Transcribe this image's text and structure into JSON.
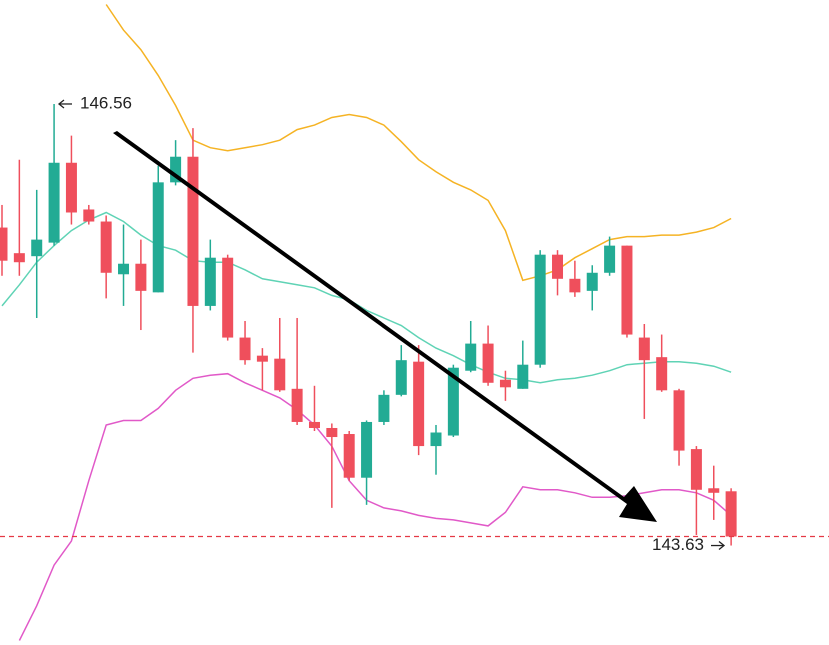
{
  "chart_data": {
    "type": "candlestick",
    "up_color": "#22ab94",
    "down_color": "#ef4f5c",
    "ylim": [
      142.97,
      147.25
    ],
    "open": [
      145.74,
      145.57,
      145.55,
      145.64,
      146.17,
      145.86,
      145.78,
      145.43,
      145.5,
      145.31,
      146.04,
      146.21,
      145.22,
      145.54,
      145.01,
      144.89,
      144.87,
      144.67,
      144.45,
      144.41,
      144.37,
      144.08,
      144.45,
      144.63,
      144.85,
      144.29,
      144.36,
      144.79,
      144.97,
      144.73,
      144.67,
      144.83,
      145.56,
      145.4,
      145.32,
      145.44,
      145.62,
      145.01,
      144.88,
      144.66,
      144.27,
      144.01,
      143.99
    ],
    "high": [
      145.89,
      146.19,
      145.99,
      146.56,
      146.35,
      145.89,
      145.82,
      145.76,
      145.66,
      146.15,
      146.32,
      146.4,
      145.66,
      145.56,
      145.12,
      144.94,
      145.14,
      145.14,
      144.69,
      144.44,
      144.39,
      144.46,
      144.66,
      144.96,
      144.96,
      144.43,
      144.83,
      145.12,
      145.09,
      144.79,
      144.99,
      145.59,
      145.59,
      145.52,
      145.49,
      145.68,
      145.62,
      145.1,
      145.03,
      144.67,
      144.29,
      144.16,
      144.01
    ],
    "low": [
      145.42,
      145.42,
      145.14,
      145.62,
      145.76,
      145.76,
      145.27,
      145.22,
      145.06,
      145.31,
      146.02,
      144.91,
      145.19,
      144.99,
      144.83,
      144.66,
      144.65,
      144.43,
      144.39,
      143.88,
      144.06,
      143.9,
      144.43,
      144.62,
      144.23,
      144.1,
      144.35,
      144.78,
      144.69,
      144.59,
      144.67,
      144.81,
      145.29,
      145.28,
      145.19,
      145.42,
      145.01,
      144.47,
      144.65,
      144.16,
      143.7,
      143.8,
      143.63
    ],
    "close": [
      145.52,
      145.51,
      145.66,
      146.17,
      145.84,
      145.78,
      145.44,
      145.5,
      145.32,
      146.04,
      146.21,
      145.22,
      145.54,
      145.01,
      144.86,
      144.85,
      144.66,
      144.45,
      144.41,
      144.35,
      144.08,
      144.45,
      144.63,
      144.86,
      144.29,
      144.38,
      144.81,
      144.97,
      144.71,
      144.68,
      144.83,
      145.56,
      145.4,
      145.31,
      145.44,
      145.62,
      145.03,
      144.86,
      144.66,
      144.26,
      144.0,
      143.98,
      143.69
    ],
    "lines": [
      {
        "color": "#f5b324",
        "values": [
          null,
          null,
          null,
          null,
          null,
          null,
          147.22,
          147.05,
          146.92,
          146.75,
          146.55,
          146.32,
          146.27,
          146.25,
          146.27,
          146.29,
          146.32,
          146.39,
          146.42,
          146.47,
          146.49,
          146.47,
          146.42,
          146.31,
          146.19,
          146.11,
          146.04,
          145.99,
          145.92,
          145.72,
          145.39,
          145.42,
          145.46,
          145.54,
          145.6,
          145.66,
          145.68,
          145.68,
          145.69,
          145.69,
          145.71,
          145.74,
          145.8
        ]
      },
      {
        "color": "#5fd3b5",
        "values": [
          145.22,
          145.36,
          145.51,
          145.62,
          145.72,
          145.79,
          145.84,
          145.78,
          145.69,
          145.62,
          145.59,
          145.52,
          145.51,
          145.51,
          145.46,
          145.4,
          145.38,
          145.36,
          145.34,
          145.29,
          145.26,
          145.19,
          145.14,
          145.09,
          145.01,
          144.94,
          144.89,
          144.83,
          144.78,
          144.74,
          144.73,
          144.71,
          144.73,
          144.74,
          144.76,
          144.79,
          144.83,
          144.84,
          144.85,
          144.85,
          144.84,
          144.82,
          144.78
        ]
      },
      {
        "color": "#e159c8",
        "values": [
          null,
          143.0,
          143.23,
          143.5,
          143.66,
          144.06,
          144.43,
          144.46,
          144.46,
          144.54,
          144.66,
          144.74,
          144.76,
          144.77,
          144.71,
          144.66,
          144.61,
          144.53,
          144.43,
          144.29,
          144.06,
          143.93,
          143.88,
          143.86,
          143.83,
          143.81,
          143.8,
          143.78,
          143.76,
          143.85,
          144.02,
          144.0,
          144.0,
          143.98,
          143.95,
          143.95,
          143.96,
          143.98,
          144.0,
          144.0,
          143.98,
          143.93,
          143.83
        ]
      }
    ],
    "annotations": [
      146.56,
      143.63
    ]
  }
}
